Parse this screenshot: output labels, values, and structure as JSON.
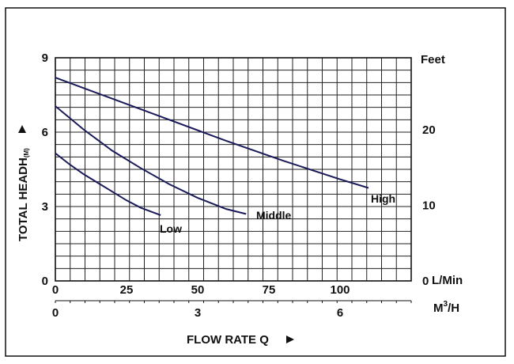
{
  "chart_data": {
    "type": "line",
    "xlabel": "FLOW RATE Q",
    "ylabel_main": "TOTAL HEADH",
    "ylabel_sub": "(M)",
    "y_right_unit": "Feet",
    "x_unit_top": "L/Min",
    "x_unit_bottom_main": "M",
    "x_unit_bottom_sup": "3",
    "x_unit_bottom_suffix": "/H",
    "xlim": [
      0,
      125
    ],
    "ylim": [
      0,
      9
    ],
    "grid": true,
    "x_ticks": [
      "0",
      "25",
      "50",
      "75",
      "100"
    ],
    "x_tick_values": [
      0,
      25,
      50,
      75,
      100
    ],
    "x_ticks_m3h": [
      "0",
      "3",
      "6"
    ],
    "x_tick_m3h_values": [
      0,
      3,
      6
    ],
    "y_ticks": [
      "0",
      "3",
      "6",
      "9"
    ],
    "y_tick_values": [
      0,
      3,
      6,
      9
    ],
    "y_right_ticks": [
      "0",
      "10",
      "20"
    ],
    "y_right_tick_values": [
      0,
      10,
      20
    ],
    "series": [
      {
        "name": "High",
        "x": [
          0,
          20,
          40,
          60,
          80,
          100,
          110
        ],
        "y": [
          8.2,
          7.35,
          6.5,
          5.65,
          4.85,
          4.1,
          3.75
        ]
      },
      {
        "name": "Middle",
        "x": [
          0,
          10,
          20,
          30,
          40,
          50,
          60,
          67
        ],
        "y": [
          7.05,
          6.1,
          5.25,
          4.55,
          3.9,
          3.35,
          2.9,
          2.7
        ]
      },
      {
        "name": "Low",
        "x": [
          0,
          5,
          10,
          15,
          20,
          25,
          30,
          37
        ],
        "y": [
          5.15,
          4.7,
          4.3,
          3.95,
          3.6,
          3.25,
          2.95,
          2.65
        ]
      }
    ]
  }
}
